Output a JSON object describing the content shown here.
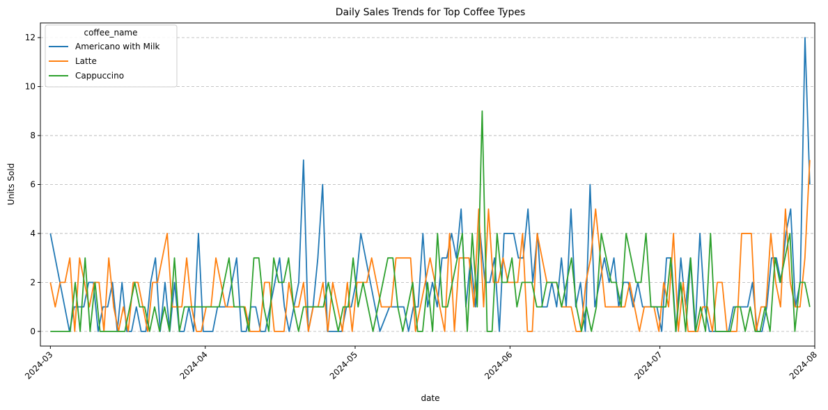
{
  "chart_data": {
    "type": "line",
    "title": "Daily Sales Trends for Top Coffee Types",
    "xlabel": "date",
    "ylabel": "Units Sold",
    "x_start": "2024-03-01",
    "xlim": [
      "2024-02-28",
      "2024-08-01"
    ],
    "ylim": [
      -0.6,
      12.6
    ],
    "y_ticks": [
      0,
      2,
      4,
      6,
      8,
      10,
      12
    ],
    "x_ticks": [
      "2024-03",
      "2024-04",
      "2024-05",
      "2024-06",
      "2024-07",
      "2024-08"
    ],
    "grid": "y-dashed",
    "legend": {
      "title": "coffee_name",
      "position": "top-left"
    },
    "series": [
      {
        "name": "Americano with Milk",
        "color": "#1f77b4",
        "values": [
          4,
          3,
          2,
          1,
          0,
          1,
          1,
          1,
          2,
          2,
          0,
          1,
          1,
          2,
          0,
          2,
          0,
          0,
          1,
          0,
          0,
          2,
          3,
          0,
          2,
          0,
          2,
          0,
          0,
          1,
          0,
          4,
          0,
          0,
          0,
          1,
          1,
          1,
          2,
          3,
          0,
          0,
          1,
          1,
          0,
          0,
          1,
          2,
          3,
          1,
          0,
          1,
          2,
          7,
          0,
          1,
          3,
          6,
          0,
          0,
          0,
          0,
          1,
          1,
          2,
          4,
          3,
          2,
          1,
          0,
          0.5,
          1,
          1,
          1,
          1,
          0,
          1,
          1,
          4,
          1,
          2,
          1,
          3,
          3,
          4,
          3,
          5,
          1,
          3,
          1,
          4,
          2,
          2,
          3,
          0,
          4,
          4,
          4,
          3,
          3,
          5,
          2,
          4,
          1,
          1,
          2,
          1,
          3,
          1,
          5,
          1,
          2,
          0,
          6,
          1,
          2,
          3,
          2,
          3,
          1,
          2,
          2,
          1,
          2,
          1,
          1,
          1,
          1,
          0,
          3,
          3,
          0,
          3,
          1,
          3,
          0,
          4,
          1,
          0,
          0,
          0,
          0,
          0,
          1,
          1,
          1,
          1,
          2,
          0,
          0,
          1,
          3,
          3,
          2,
          4,
          5,
          1,
          2,
          12,
          6
        ]
      },
      {
        "name": "Latte",
        "color": "#ff7f0e",
        "values": [
          2,
          1,
          2,
          2,
          3,
          0,
          3,
          2,
          1,
          2,
          2,
          0,
          3,
          1,
          0,
          1,
          0,
          2,
          2,
          1,
          0,
          2,
          2,
          3,
          4,
          1,
          1,
          1,
          3,
          1,
          0,
          0,
          1,
          1,
          3,
          2,
          1,
          1,
          1,
          1,
          1,
          0,
          0,
          0,
          2,
          2,
          0,
          0,
          0,
          2,
          1,
          1,
          2,
          0,
          1,
          1,
          2,
          0,
          2,
          1,
          0,
          2,
          0,
          2,
          2,
          2,
          3,
          2,
          1,
          1,
          1,
          3,
          3,
          3,
          3,
          0,
          1,
          2,
          3,
          2,
          1,
          0,
          4,
          0,
          3,
          3,
          3,
          1,
          5,
          1,
          5,
          2,
          2,
          3,
          2,
          2,
          2,
          4,
          0,
          0,
          4,
          3,
          2,
          2,
          2,
          1,
          1,
          1,
          0,
          0,
          2,
          3,
          5,
          3,
          1,
          1,
          1,
          1,
          1,
          2,
          1,
          0,
          1,
          1,
          1,
          0,
          2,
          1,
          4,
          0,
          2,
          0,
          0,
          0,
          1,
          1,
          0,
          2,
          2,
          0,
          0,
          0,
          4,
          4,
          4,
          0,
          1,
          1,
          4,
          2,
          1,
          5,
          2,
          1,
          1,
          3,
          7
        ]
      },
      {
        "name": "Cappuccino",
        "color": "#2ca02c",
        "values": [
          0,
          0,
          0,
          0,
          0,
          2,
          0,
          3,
          0,
          2,
          0,
          0,
          0,
          0,
          0,
          0,
          1,
          2,
          1,
          1,
          0,
          1,
          0,
          1,
          0,
          3,
          0,
          1,
          1,
          1,
          1,
          1,
          1,
          1,
          1,
          2,
          3,
          1,
          1,
          1,
          0,
          3,
          3,
          1,
          0,
          3,
          2,
          2,
          3,
          1,
          0,
          1,
          1,
          1,
          1,
          1,
          2,
          1,
          0,
          1,
          1,
          3,
          1,
          2,
          1,
          0,
          1,
          2,
          3,
          3,
          1,
          0,
          1,
          2,
          0,
          0,
          2,
          0,
          4,
          1,
          1,
          2,
          3,
          4,
          0,
          4,
          1,
          9,
          0,
          0,
          4,
          2,
          2,
          3,
          1,
          2,
          2,
          2,
          1,
          1,
          2,
          2,
          2,
          1,
          2,
          3,
          1,
          0,
          1,
          0,
          1,
          4,
          3,
          2,
          2,
          1,
          4,
          3,
          2,
          2,
          4,
          1,
          1,
          1,
          1,
          3,
          0,
          2,
          0,
          3,
          0,
          1,
          0,
          4,
          0,
          0,
          0,
          0,
          1,
          1,
          0,
          1,
          0,
          0,
          1,
          0,
          3,
          2,
          3,
          4,
          0,
          2,
          2,
          1
        ]
      }
    ]
  }
}
